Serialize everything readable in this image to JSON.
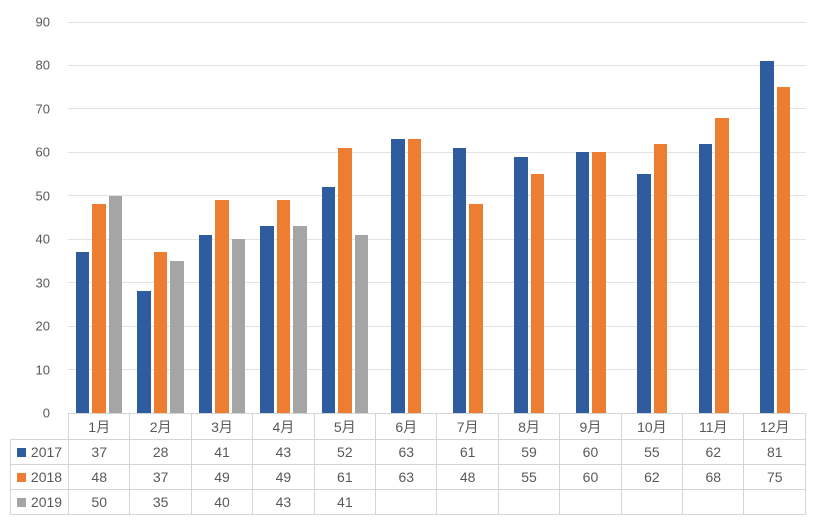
{
  "chart_data": {
    "type": "bar",
    "title": "",
    "categories": [
      "1月",
      "2月",
      "3月",
      "4月",
      "5月",
      "6月",
      "7月",
      "8月",
      "9月",
      "10月",
      "11月",
      "12月"
    ],
    "series": [
      {
        "name": "2017",
        "color": "#2E5C9E",
        "values": [
          37,
          28,
          41,
          43,
          52,
          63,
          61,
          59,
          60,
          55,
          62,
          81
        ]
      },
      {
        "name": "2018",
        "color": "#ED7D31",
        "values": [
          48,
          37,
          49,
          49,
          61,
          63,
          48,
          55,
          60,
          62,
          68,
          75
        ]
      },
      {
        "name": "2019",
        "color": "#A5A5A5",
        "values": [
          50,
          35,
          40,
          43,
          41,
          null,
          null,
          null,
          null,
          null,
          null,
          null
        ]
      }
    ],
    "ylim": [
      0,
      90
    ],
    "yticks": [
      0,
      10,
      20,
      30,
      40,
      50,
      60,
      70,
      80,
      90
    ],
    "grid": true,
    "legend_position": "table-rows-left",
    "xlabel": "",
    "ylabel": ""
  },
  "style": {
    "grid_color": "#e3e3e3",
    "table_border_color": "#d4d4d4",
    "text_color": "#595959",
    "background": "#ffffff"
  }
}
